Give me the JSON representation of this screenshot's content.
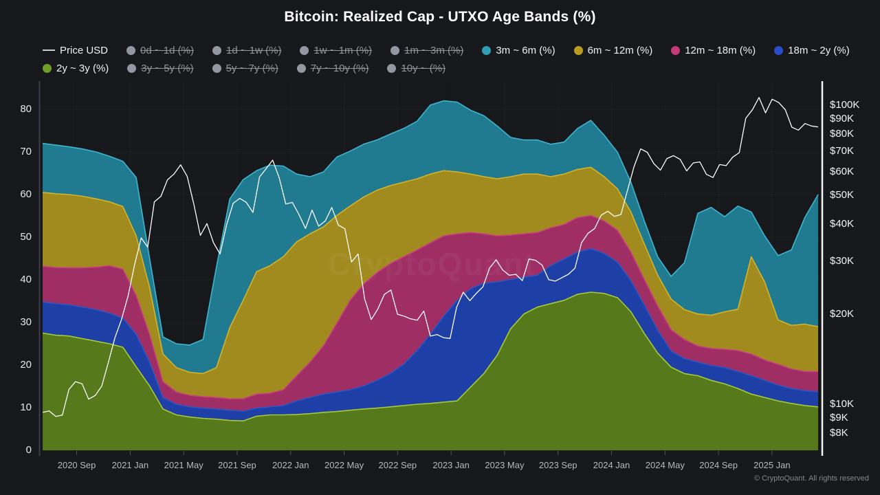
{
  "title": "Bitcoin: Realized Cap - UTXO Age Bands (%)",
  "watermark": "CryptoQuant",
  "footer": "© CryptoQuant. All rights reserved",
  "legend": {
    "rows": [
      [
        {
          "label": "Price USD",
          "marker": "line",
          "color": "#d0d1d5",
          "disabled": false
        },
        {
          "label": "0d ~ 1d (%)",
          "marker": "dot",
          "color": "#9297a1",
          "disabled": true
        },
        {
          "label": "1d ~ 1w (%)",
          "marker": "dot",
          "color": "#9297a1",
          "disabled": true
        },
        {
          "label": "1w ~ 1m (%)",
          "marker": "dot",
          "color": "#9297a1",
          "disabled": true
        },
        {
          "label": "1m ~ 3m (%)",
          "marker": "dot",
          "color": "#9297a1",
          "disabled": true
        },
        {
          "label": "3m ~ 6m (%)",
          "marker": "dot",
          "color": "#2f9db4",
          "disabled": false
        },
        {
          "label": "6m ~ 12m (%)",
          "marker": "dot",
          "color": "#b79c20",
          "disabled": false
        },
        {
          "label": "12m ~ 18m (%)",
          "marker": "dot",
          "color": "#c23a78",
          "disabled": false
        },
        {
          "label": "18m ~ 2y (%)",
          "marker": "dot",
          "color": "#2a4ecb",
          "disabled": false
        }
      ],
      [
        {
          "label": "2y ~ 3y (%)",
          "marker": "dot",
          "color": "#6f9e26",
          "disabled": false
        },
        {
          "label": "3y ~ 5y (%)",
          "marker": "dot",
          "color": "#9297a1",
          "disabled": true
        },
        {
          "label": "5y ~ 7y (%)",
          "marker": "dot",
          "color": "#9297a1",
          "disabled": true
        },
        {
          "label": "7y ~ 10y (%)",
          "marker": "dot",
          "color": "#9297a1",
          "disabled": true
        },
        {
          "label": "10y ~ (%)",
          "marker": "dot",
          "color": "#9297a1",
          "disabled": true
        }
      ]
    ]
  },
  "chart_data": {
    "type": "area",
    "stacked": true,
    "grid": true,
    "categories": [
      "2020-06",
      "2020-07",
      "2020-08",
      "2020-09",
      "2020-10",
      "2020-11",
      "2020-12",
      "2021-01",
      "2021-02",
      "2021-03",
      "2021-04",
      "2021-05",
      "2021-06",
      "2021-07",
      "2021-08",
      "2021-09",
      "2021-10",
      "2021-11",
      "2021-12",
      "2022-01",
      "2022-02",
      "2022-03",
      "2022-04",
      "2022-05",
      "2022-06",
      "2022-07",
      "2022-08",
      "2022-09",
      "2022-10",
      "2022-11",
      "2022-12",
      "2023-01",
      "2023-02",
      "2023-03",
      "2023-04",
      "2023-05",
      "2023-06",
      "2023-07",
      "2023-08",
      "2023-09",
      "2023-10",
      "2023-11",
      "2023-12",
      "2024-01",
      "2024-02",
      "2024-03",
      "2024-04",
      "2024-05",
      "2024-06",
      "2024-07",
      "2024-08",
      "2024-09",
      "2024-10",
      "2024-11",
      "2024-12",
      "2025-01",
      "2025-02",
      "2025-03",
      "2025-04"
    ],
    "series": [
      {
        "name": "2y ~ 3y (%)",
        "fill": "#55791b",
        "stroke": "#a8cc33",
        "values": [
          27.5,
          27.0,
          26.8,
          26.2,
          25.6,
          25.0,
          24.2,
          19.6,
          15.1,
          9.7,
          8.3,
          7.8,
          7.5,
          7.3,
          7.0,
          6.9,
          8.0,
          8.3,
          8.3,
          8.4,
          8.6,
          8.9,
          9.1,
          9.4,
          9.7,
          9.9,
          10.2,
          10.5,
          10.8,
          11.0,
          11.3,
          11.6,
          14.8,
          18.0,
          22.3,
          28.5,
          32.0,
          33.6,
          34.4,
          35.2,
          36.6,
          37.1,
          36.8,
          35.8,
          32.5,
          27.4,
          22.8,
          19.5,
          18.0,
          17.5,
          16.4,
          15.6,
          14.5,
          13.2,
          12.4,
          11.6,
          11.0,
          10.5,
          10.2
        ]
      },
      {
        "name": "18m ~ 2y (%)",
        "fill": "#1e3fa6",
        "stroke": "#2e55c4",
        "values": [
          7.3,
          7.4,
          7.3,
          7.4,
          7.4,
          7.2,
          6.8,
          7.6,
          5.6,
          2.7,
          2.5,
          2.4,
          2.4,
          2.4,
          2.4,
          2.3,
          1.9,
          1.9,
          2.2,
          3.2,
          3.8,
          4.3,
          4.6,
          4.8,
          5.4,
          6.5,
          7.8,
          9.7,
          12.6,
          16.2,
          20.2,
          23.6,
          23.1,
          21.2,
          17.2,
          11.6,
          8.6,
          7.5,
          8.9,
          9.7,
          9.9,
          10.2,
          9.4,
          8.3,
          7.3,
          6.7,
          5.4,
          3.8,
          3.5,
          3.2,
          3.5,
          3.8,
          4.0,
          4.3,
          4.0,
          3.7,
          3.5,
          3.5,
          3.5
        ]
      },
      {
        "name": "12m ~ 18m (%)",
        "fill": "#9e2e63",
        "stroke": "#cc4080",
        "values": [
          8.4,
          8.5,
          8.7,
          9.2,
          10.0,
          11.1,
          11.5,
          9.1,
          6.5,
          3.7,
          2.9,
          2.7,
          2.7,
          2.7,
          2.7,
          2.9,
          3.3,
          3.2,
          3.7,
          5.9,
          8.3,
          11.3,
          16.1,
          21.0,
          23.9,
          25.3,
          25.8,
          25.2,
          23.6,
          21.5,
          18.8,
          15.6,
          13.2,
          11.6,
          10.8,
          10.4,
          10.2,
          10.0,
          8.9,
          8.1,
          8.1,
          7.8,
          7.6,
          7.5,
          6.7,
          6.0,
          5.7,
          5.0,
          4.5,
          3.8,
          4.0,
          4.3,
          4.9,
          5.1,
          4.8,
          4.9,
          4.6,
          4.5,
          4.8
        ]
      },
      {
        "name": "6m ~ 12m (%)",
        "fill": "#a18a1e",
        "stroke": "#d4b42a",
        "values": [
          17.3,
          17.3,
          17.2,
          16.8,
          16.0,
          15.0,
          14.7,
          14.0,
          11.0,
          6.5,
          5.7,
          5.4,
          5.4,
          7.0,
          16.7,
          23.1,
          28.7,
          29.9,
          31.2,
          31.4,
          30.1,
          27.9,
          25.3,
          22.1,
          20.4,
          19.3,
          18.3,
          17.5,
          16.7,
          16.1,
          15.3,
          14.5,
          13.7,
          13.4,
          13.4,
          13.7,
          14.0,
          13.7,
          12.0,
          11.8,
          11.3,
          11.3,
          10.4,
          9.7,
          9.4,
          8.3,
          7.2,
          7.2,
          7.0,
          7.5,
          7.8,
          8.8,
          9.7,
          22.8,
          18.3,
          10.4,
          10.2,
          11.1,
          10.5
        ]
      },
      {
        "name": "3m ~ 6m (%)",
        "fill": "#207a90",
        "stroke": "#3eb6d0",
        "values": [
          11.5,
          11.4,
          11.2,
          11.1,
          11.0,
          10.7,
          10.6,
          13.7,
          6.8,
          4.0,
          5.6,
          6.4,
          8.0,
          23.6,
          30.2,
          28.3,
          23.7,
          23.6,
          21.3,
          15.9,
          13.4,
          12.9,
          13.7,
          12.9,
          12.4,
          11.8,
          12.1,
          12.6,
          13.5,
          16.2,
          16.4,
          16.4,
          15.0,
          14.3,
          12.4,
          9.2,
          8.0,
          8.0,
          7.6,
          7.5,
          9.6,
          11.0,
          9.7,
          8.6,
          7.0,
          5.4,
          4.3,
          5.3,
          11.0,
          23.6,
          25.3,
          22.3,
          24.2,
          10.5,
          10.8,
          15.1,
          17.7,
          25.0,
          31.0
        ]
      }
    ],
    "price_line": {
      "name": "Price USD",
      "color": "#ffffff",
      "unit": "K USD",
      "scale": "log",
      "values": [
        9.4,
        9.5,
        9.1,
        9.2,
        11.2,
        11.9,
        11.7,
        10.4,
        10.7,
        11.5,
        13.8,
        16.7,
        19.2,
        23.0,
        29.3,
        36.0,
        33.5,
        47.5,
        49.6,
        56.3,
        58.9,
        63.2,
        57.8,
        46.7,
        36.7,
        40.2,
        34.7,
        31.8,
        39.9,
        47.0,
        48.8,
        47.3,
        43.8,
        57.5,
        61.3,
        65.5,
        57.2,
        46.7,
        47.3,
        43.1,
        38.7,
        44.6,
        39.4,
        41.0,
        45.5,
        39.7,
        38.6,
        29.9,
        31.8,
        22.5,
        19.2,
        20.8,
        23.3,
        24.1,
        20.0,
        19.7,
        19.3,
        19.1,
        20.5,
        16.9,
        17.1,
        16.7,
        16.6,
        21.1,
        23.7,
        22.2,
        23.5,
        24.7,
        28.5,
        30.4,
        28.1,
        27.0,
        27.2,
        25.9,
        30.6,
        30.3,
        29.2,
        26.1,
        25.8,
        26.5,
        27.2,
        28.5,
        34.7,
        37.3,
        38.7,
        42.9,
        44.2,
        42.5,
        43.1,
        52.0,
        62.4,
        71.4,
        69.6,
        63.8,
        60.6,
        66.3,
        67.8,
        65.9,
        60.3,
        64.1,
        64.6,
        58.7,
        57.3,
        63.3,
        62.8,
        67.0,
        69.4,
        90.5,
        96.5,
        106.1,
        94.3,
        104.7,
        102.1,
        96.6,
        84.4,
        82.5,
        86.8,
        85.2,
        84.6
      ]
    },
    "y_left": {
      "label": "",
      "ticks": [
        0,
        10,
        20,
        30,
        40,
        50,
        60,
        70,
        80
      ],
      "range": [
        0,
        86
      ]
    },
    "y_right": {
      "label": "",
      "ticks": [
        {
          "label": "$100K",
          "value": 100000
        },
        {
          "label": "$90K",
          "value": 90000
        },
        {
          "label": "$80K",
          "value": 80000
        },
        {
          "label": "$70K",
          "value": 70000
        },
        {
          "label": "$60K",
          "value": 60000
        },
        {
          "label": "$50K",
          "value": 50000
        },
        {
          "label": "$40K",
          "value": 40000
        },
        {
          "label": "$30K",
          "value": 30000
        },
        {
          "label": "$20K",
          "value": 20000
        },
        {
          "label": "$10K",
          "value": 10000
        },
        {
          "label": "$9K",
          "value": 9000
        },
        {
          "label": "$8K",
          "value": 8000
        }
      ]
    },
    "x_ticks": [
      {
        "label": "2020 Sep",
        "m": 2.55
      },
      {
        "label": "2021 Jan",
        "m": 6.55
      },
      {
        "label": "2021 May",
        "m": 10.55
      },
      {
        "label": "2021 Sep",
        "m": 14.55
      },
      {
        "label": "2022 Jan",
        "m": 18.55
      },
      {
        "label": "2022 May",
        "m": 22.55
      },
      {
        "label": "2022 Sep",
        "m": 26.55
      },
      {
        "label": "2023 Jan",
        "m": 30.55
      },
      {
        "label": "2023 May",
        "m": 34.55
      },
      {
        "label": "2023 Sep",
        "m": 38.55
      },
      {
        "label": "2024 Jan",
        "m": 42.55
      },
      {
        "label": "2024 May",
        "m": 46.55
      },
      {
        "label": "2024 Sep",
        "m": 50.55
      },
      {
        "label": "2025 Jan",
        "m": 54.55
      }
    ]
  },
  "colors": {
    "background": "#17181b",
    "left_spine": "#3b3d4b",
    "right_spine": "#f5f5f5",
    "grid": "rgba(255,255,255,0.045)"
  }
}
